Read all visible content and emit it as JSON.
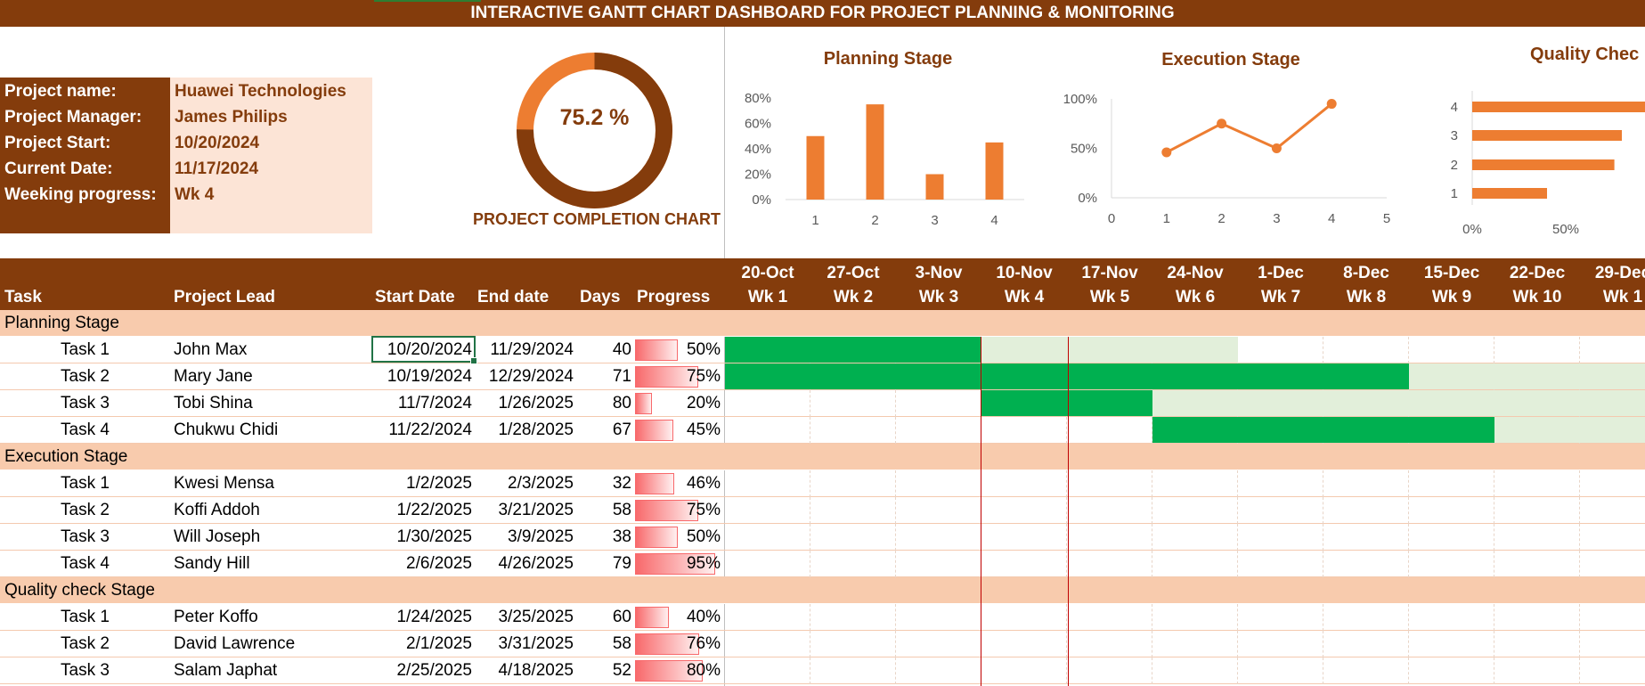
{
  "banner": "INTERACTIVE GANTT CHART DASHBOARD FOR PROJECT PLANNING & MONITORING",
  "project": {
    "name_label": "Project name:",
    "name": "Huawei Technologies",
    "manager_label": "Project Manager:",
    "manager": "James Philips",
    "start_label": "Project Start:",
    "start": "10/20/2024",
    "current_label": "Current Date:",
    "current": "11/17/2024",
    "week_label": "Weeking progress:",
    "week": "Wk 4"
  },
  "completion": {
    "value": 75.2,
    "label": "75.2 %",
    "caption": "PROJECT COMPLETION CHART"
  },
  "chart_data": [
    {
      "type": "bar",
      "title": "Planning Stage",
      "categories": [
        "1",
        "2",
        "3",
        "4"
      ],
      "values": [
        50,
        75,
        20,
        45
      ],
      "yticks": [
        "0%",
        "20%",
        "40%",
        "60%",
        "80%"
      ],
      "ylim": [
        0,
        80
      ],
      "color": "#ED7D31"
    },
    {
      "type": "line",
      "title": "Execution Stage",
      "x": [
        1,
        2,
        3,
        4
      ],
      "values": [
        46,
        75,
        50,
        95
      ],
      "xticks": [
        "0",
        "1",
        "2",
        "3",
        "4",
        "5"
      ],
      "yticks": [
        "0%",
        "50%",
        "100%"
      ],
      "ylim": [
        0,
        100
      ],
      "color": "#ED7D31"
    },
    {
      "type": "bar",
      "orientation": "horizontal",
      "title": "Quality Chec",
      "categories": [
        "1",
        "2",
        "3",
        "4"
      ],
      "values": [
        40,
        76,
        80,
        100
      ],
      "xticks": [
        "0%",
        "50%"
      ],
      "color": "#ED7D31"
    }
  ],
  "table": {
    "headers": {
      "task": "Task",
      "lead": "Project Lead",
      "start": "Start Date",
      "end": "End date",
      "days": "Days",
      "progress": "Progress"
    },
    "weeks": [
      {
        "date": "20-Oct",
        "wk": "Wk 1"
      },
      {
        "date": "27-Oct",
        "wk": "Wk 2"
      },
      {
        "date": "3-Nov",
        "wk": "Wk 3"
      },
      {
        "date": "10-Nov",
        "wk": "Wk 4"
      },
      {
        "date": "17-Nov",
        "wk": "Wk 5"
      },
      {
        "date": "24-Nov",
        "wk": "Wk 6"
      },
      {
        "date": "1-Dec",
        "wk": "Wk 7"
      },
      {
        "date": "8-Dec",
        "wk": "Wk 8"
      },
      {
        "date": "15-Dec",
        "wk": "Wk 9"
      },
      {
        "date": "22-Dec",
        "wk": "Wk 10"
      },
      {
        "date": "29-Dec",
        "wk": "Wk 1"
      }
    ],
    "stages": [
      {
        "name": "Planning Stage",
        "tasks": [
          {
            "task": "Task 1",
            "lead": "John Max",
            "start": "10/20/2024",
            "end": "11/29/2024",
            "days": "40",
            "pct": "50%",
            "progress": 50,
            "done": [
              0,
              3
            ],
            "remain": [
              3,
              6
            ]
          },
          {
            "task": "Task 2",
            "lead": "Mary Jane",
            "start": "10/19/2024",
            "end": "12/29/2024",
            "days": "71",
            "pct": "75%",
            "progress": 75,
            "done": [
              0,
              8
            ],
            "remain": [
              8,
              11
            ]
          },
          {
            "task": "Task 3",
            "lead": "Tobi Shina",
            "start": "11/7/2024",
            "end": "1/26/2025",
            "days": "80",
            "pct": "20%",
            "progress": 20,
            "done": [
              3,
              5
            ],
            "remain": [
              5,
              11
            ]
          },
          {
            "task": "Task 4",
            "lead": "Chukwu Chidi",
            "start": "11/22/2024",
            "end": "1/28/2025",
            "days": "67",
            "pct": "45%",
            "progress": 45,
            "done": [
              5,
              9
            ],
            "remain": [
              9,
              11
            ]
          }
        ]
      },
      {
        "name": "Execution Stage",
        "tasks": [
          {
            "task": "Task 1",
            "lead": "Kwesi Mensa",
            "start": "1/2/2025",
            "end": "2/3/2025",
            "days": "32",
            "pct": "46%",
            "progress": 46
          },
          {
            "task": "Task 2",
            "lead": "Koffi Addoh",
            "start": "1/22/2025",
            "end": "3/21/2025",
            "days": "58",
            "pct": "75%",
            "progress": 75
          },
          {
            "task": "Task 3",
            "lead": "Will Joseph",
            "start": "1/30/2025",
            "end": "3/9/2025",
            "days": "38",
            "pct": "50%",
            "progress": 50
          },
          {
            "task": "Task 4",
            "lead": "Sandy Hill",
            "start": "2/6/2025",
            "end": "4/26/2025",
            "days": "79",
            "pct": "95%",
            "progress": 95
          }
        ]
      },
      {
        "name": "Quality check Stage",
        "tasks": [
          {
            "task": "Task 1",
            "lead": "Peter Koffo",
            "start": "1/24/2025",
            "end": "3/25/2025",
            "days": "60",
            "pct": "40%",
            "progress": 40
          },
          {
            "task": "Task 2",
            "lead": "David Lawrence",
            "start": "2/1/2025",
            "end": "3/31/2025",
            "days": "58",
            "pct": "76%",
            "progress": 76
          },
          {
            "task": "Task 3",
            "lead": "Salam Japhat",
            "start": "2/25/2025",
            "end": "4/18/2025",
            "days": "52",
            "pct": "80%",
            "progress": 80
          }
        ]
      }
    ]
  },
  "colors": {
    "brown": "#843C0C",
    "orange": "#ED7D31",
    "done": "#00B050",
    "remain": "#E2EFDA",
    "today": "#C00000"
  }
}
